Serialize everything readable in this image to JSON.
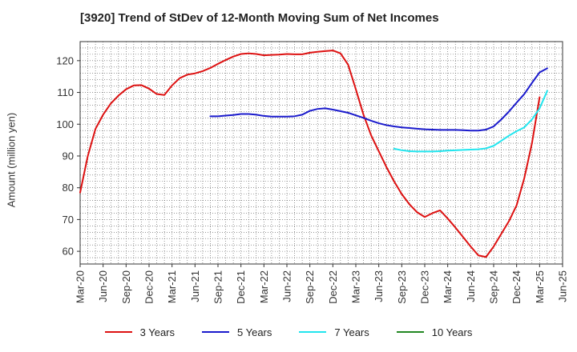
{
  "chart_data": {
    "type": "line",
    "title": "[3920]  Trend of StDev of 12-Month Moving Sum of Net Incomes",
    "ylabel": "Amount (million yen)",
    "xlabel": "",
    "ylim": [
      56,
      126
    ],
    "yticks": [
      60,
      70,
      80,
      90,
      100,
      110,
      120
    ],
    "xticks": [
      "Mar-20",
      "Jun-20",
      "Sep-20",
      "Dec-20",
      "Mar-21",
      "Jun-21",
      "Sep-21",
      "Dec-21",
      "Mar-22",
      "Jun-22",
      "Sep-22",
      "Dec-22",
      "Mar-23",
      "Jun-23",
      "Sep-23",
      "Dec-23",
      "Mar-24",
      "Jun-24",
      "Sep-24",
      "Dec-24",
      "Mar-25",
      "Jun-25"
    ],
    "grid": true,
    "legend_position": "bottom",
    "series": [
      {
        "name": "3 Years",
        "color": "#dd1111",
        "points": [
          [
            "Mar-20",
            78.5
          ],
          [
            "Apr-20",
            90
          ],
          [
            "May-20",
            98.5
          ],
          [
            "Jun-20",
            103
          ],
          [
            "Jul-20",
            106.5
          ],
          [
            "Aug-20",
            109
          ],
          [
            "Sep-20",
            111
          ],
          [
            "Oct-20",
            112.2
          ],
          [
            "Nov-20",
            112.3
          ],
          [
            "Dec-20",
            111.2
          ],
          [
            "Jan-21",
            109.5
          ],
          [
            "Feb-21",
            109.2
          ],
          [
            "Mar-21",
            112.2
          ],
          [
            "Apr-21",
            114.5
          ],
          [
            "May-21",
            115.6
          ],
          [
            "Jun-21",
            116
          ],
          [
            "Jul-21",
            116.7
          ],
          [
            "Aug-21",
            117.7
          ],
          [
            "Sep-21",
            119
          ],
          [
            "Oct-21",
            120.2
          ],
          [
            "Nov-21",
            121.3
          ],
          [
            "Dec-21",
            122.1
          ],
          [
            "Jan-22",
            122.3
          ],
          [
            "Feb-22",
            122.1
          ],
          [
            "Mar-22",
            121.7
          ],
          [
            "Apr-22",
            121.8
          ],
          [
            "May-22",
            121.9
          ],
          [
            "Jun-22",
            122.1
          ],
          [
            "Jul-22",
            122
          ],
          [
            "Aug-22",
            122
          ],
          [
            "Sep-22",
            122.5
          ],
          [
            "Oct-22",
            122.8
          ],
          [
            "Nov-22",
            123
          ],
          [
            "Dec-22",
            123.2
          ],
          [
            "Jan-23",
            122.3
          ],
          [
            "Feb-23",
            118.7
          ],
          [
            "Mar-23",
            111
          ],
          [
            "Apr-23",
            103
          ],
          [
            "May-23",
            96.5
          ],
          [
            "Jun-23",
            91.5
          ],
          [
            "Jul-23",
            86.5
          ],
          [
            "Aug-23",
            82
          ],
          [
            "Sep-23",
            78
          ],
          [
            "Oct-23",
            74.8
          ],
          [
            "Nov-23",
            72.3
          ],
          [
            "Dec-23",
            70.8
          ],
          [
            "Jan-24",
            72
          ],
          [
            "Feb-24",
            72.9
          ],
          [
            "Mar-24",
            70.3
          ],
          [
            "Apr-24",
            67.5
          ],
          [
            "May-24",
            64.5
          ],
          [
            "Jun-24",
            61.5
          ],
          [
            "Jul-24",
            58.7
          ],
          [
            "Aug-24",
            58.2
          ],
          [
            "Sep-24",
            61.5
          ],
          [
            "Oct-24",
            65.5
          ],
          [
            "Nov-24",
            69.5
          ],
          [
            "Dec-24",
            74.5
          ],
          [
            "Jan-25",
            83
          ],
          [
            "Feb-25",
            94
          ],
          [
            "Mar-25",
            108.5
          ]
        ]
      },
      {
        "name": "5 Years",
        "color": "#1a1acc",
        "points": [
          [
            "Aug-21",
            102.5
          ],
          [
            "Sep-21",
            102.5
          ],
          [
            "Oct-21",
            102.7
          ],
          [
            "Nov-21",
            102.9
          ],
          [
            "Dec-21",
            103.2
          ],
          [
            "Jan-22",
            103.2
          ],
          [
            "Feb-22",
            103
          ],
          [
            "Mar-22",
            102.6
          ],
          [
            "Apr-22",
            102.4
          ],
          [
            "May-22",
            102.4
          ],
          [
            "Jun-22",
            102.4
          ],
          [
            "Jul-22",
            102.5
          ],
          [
            "Aug-22",
            103
          ],
          [
            "Sep-22",
            104.2
          ],
          [
            "Oct-22",
            104.8
          ],
          [
            "Nov-22",
            105
          ],
          [
            "Dec-22",
            104.6
          ],
          [
            "Jan-23",
            104.1
          ],
          [
            "Feb-23",
            103.6
          ],
          [
            "Mar-23",
            102.8
          ],
          [
            "Apr-23",
            102
          ],
          [
            "May-23",
            101.1
          ],
          [
            "Jun-23",
            100.3
          ],
          [
            "Jul-23",
            99.7
          ],
          [
            "Aug-23",
            99.3
          ],
          [
            "Sep-23",
            99
          ],
          [
            "Oct-23",
            98.8
          ],
          [
            "Nov-23",
            98.6
          ],
          [
            "Dec-23",
            98.4
          ],
          [
            "Jan-24",
            98.3
          ],
          [
            "Feb-24",
            98.2
          ],
          [
            "Mar-24",
            98.2
          ],
          [
            "Apr-24",
            98.2
          ],
          [
            "May-24",
            98.1
          ],
          [
            "Jun-24",
            98
          ],
          [
            "Jul-24",
            98
          ],
          [
            "Aug-24",
            98.3
          ],
          [
            "Sep-24",
            99.3
          ],
          [
            "Oct-24",
            101.5
          ],
          [
            "Nov-24",
            104
          ],
          [
            "Dec-24",
            106.8
          ],
          [
            "Jan-25",
            109.5
          ],
          [
            "Feb-25",
            113
          ],
          [
            "Mar-25",
            116.3
          ],
          [
            "Apr-25",
            117.6
          ]
        ]
      },
      {
        "name": "7 Years",
        "color": "#22e5ee",
        "points": [
          [
            "Aug-23",
            92.3
          ],
          [
            "Sep-23",
            91.8
          ],
          [
            "Oct-23",
            91.5
          ],
          [
            "Nov-23",
            91.4
          ],
          [
            "Dec-23",
            91.4
          ],
          [
            "Jan-24",
            91.4
          ],
          [
            "Feb-24",
            91.5
          ],
          [
            "Mar-24",
            91.7
          ],
          [
            "Apr-24",
            91.8
          ],
          [
            "May-24",
            91.9
          ],
          [
            "Jun-24",
            92
          ],
          [
            "Jul-24",
            92.1
          ],
          [
            "Aug-24",
            92.4
          ],
          [
            "Sep-24",
            93.2
          ],
          [
            "Oct-24",
            94.8
          ],
          [
            "Nov-24",
            96.4
          ],
          [
            "Dec-24",
            97.8
          ],
          [
            "Jan-25",
            99
          ],
          [
            "Feb-25",
            101.5
          ],
          [
            "Mar-25",
            105
          ],
          [
            "Apr-25",
            110.5
          ]
        ]
      },
      {
        "name": "10 Years",
        "color": "#228822",
        "points": []
      }
    ]
  }
}
